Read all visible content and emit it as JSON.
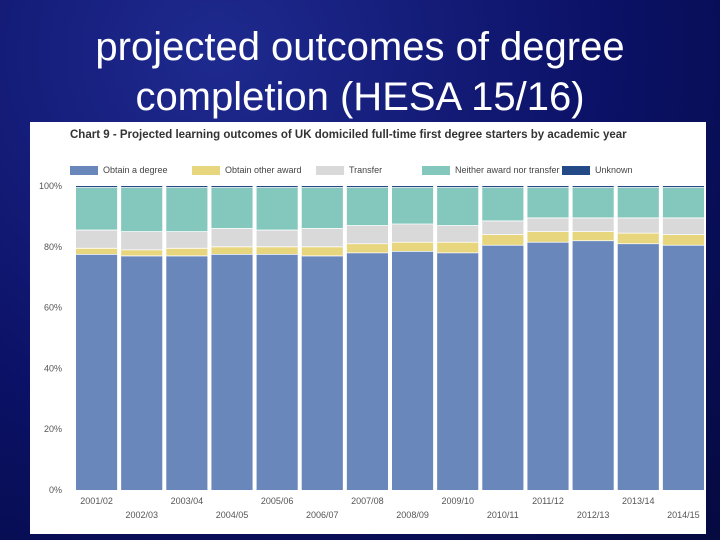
{
  "slide": {
    "title_line1": "projected outcomes of degree",
    "title_line2": "completion (HESA 15/16)"
  },
  "colors": {
    "obtain_degree": "#6a87bb",
    "other_award": "#e8d67e",
    "transfer": "#d9d9d9",
    "neither": "#84c7bd",
    "unknown": "#234a86"
  },
  "chart_data": {
    "type": "bar",
    "stacked": true,
    "title": "Chart 9 - Projected learning outcomes of UK domiciled full-time first degree starters by academic year",
    "xlabel": "",
    "ylabel": "",
    "ylim": [
      0,
      100
    ],
    "yticks": [
      "0%",
      "20%",
      "40%",
      "60%",
      "80%",
      "100%"
    ],
    "categories": [
      "2001/02",
      "2002/03",
      "2003/04",
      "2004/05",
      "2005/06",
      "2006/07",
      "2007/08",
      "2008/09",
      "2009/10",
      "2010/11",
      "2011/12",
      "2012/13",
      "2013/14",
      "2014/15"
    ],
    "series": [
      {
        "name": "Obtain a degree",
        "values": [
          77.5,
          77.0,
          77.0,
          77.5,
          77.5,
          77.0,
          78.0,
          78.5,
          78.0,
          80.5,
          81.5,
          82.0,
          81.0,
          80.5
        ]
      },
      {
        "name": "Obtain other award",
        "values": [
          2.0,
          2.0,
          2.5,
          2.5,
          2.5,
          3.0,
          3.0,
          3.0,
          3.5,
          3.5,
          3.5,
          3.0,
          3.5,
          3.5
        ]
      },
      {
        "name": "Transfer",
        "values": [
          6.0,
          6.0,
          5.5,
          6.0,
          5.5,
          6.0,
          6.0,
          6.0,
          5.5,
          4.5,
          4.5,
          4.5,
          5.0,
          5.5
        ]
      },
      {
        "name": "Neither award nor transfer",
        "values": [
          14.0,
          14.5,
          14.5,
          13.5,
          14.0,
          13.5,
          12.5,
          12.0,
          12.5,
          11.0,
          10.0,
          10.0,
          10.0,
          10.0
        ]
      },
      {
        "name": "Unknown",
        "values": [
          0.5,
          0.5,
          0.5,
          0.5,
          0.5,
          0.5,
          0.5,
          0.5,
          0.5,
          0.5,
          0.5,
          0.5,
          0.5,
          0.5
        ]
      }
    ],
    "legend_position": "top",
    "grid": false
  }
}
